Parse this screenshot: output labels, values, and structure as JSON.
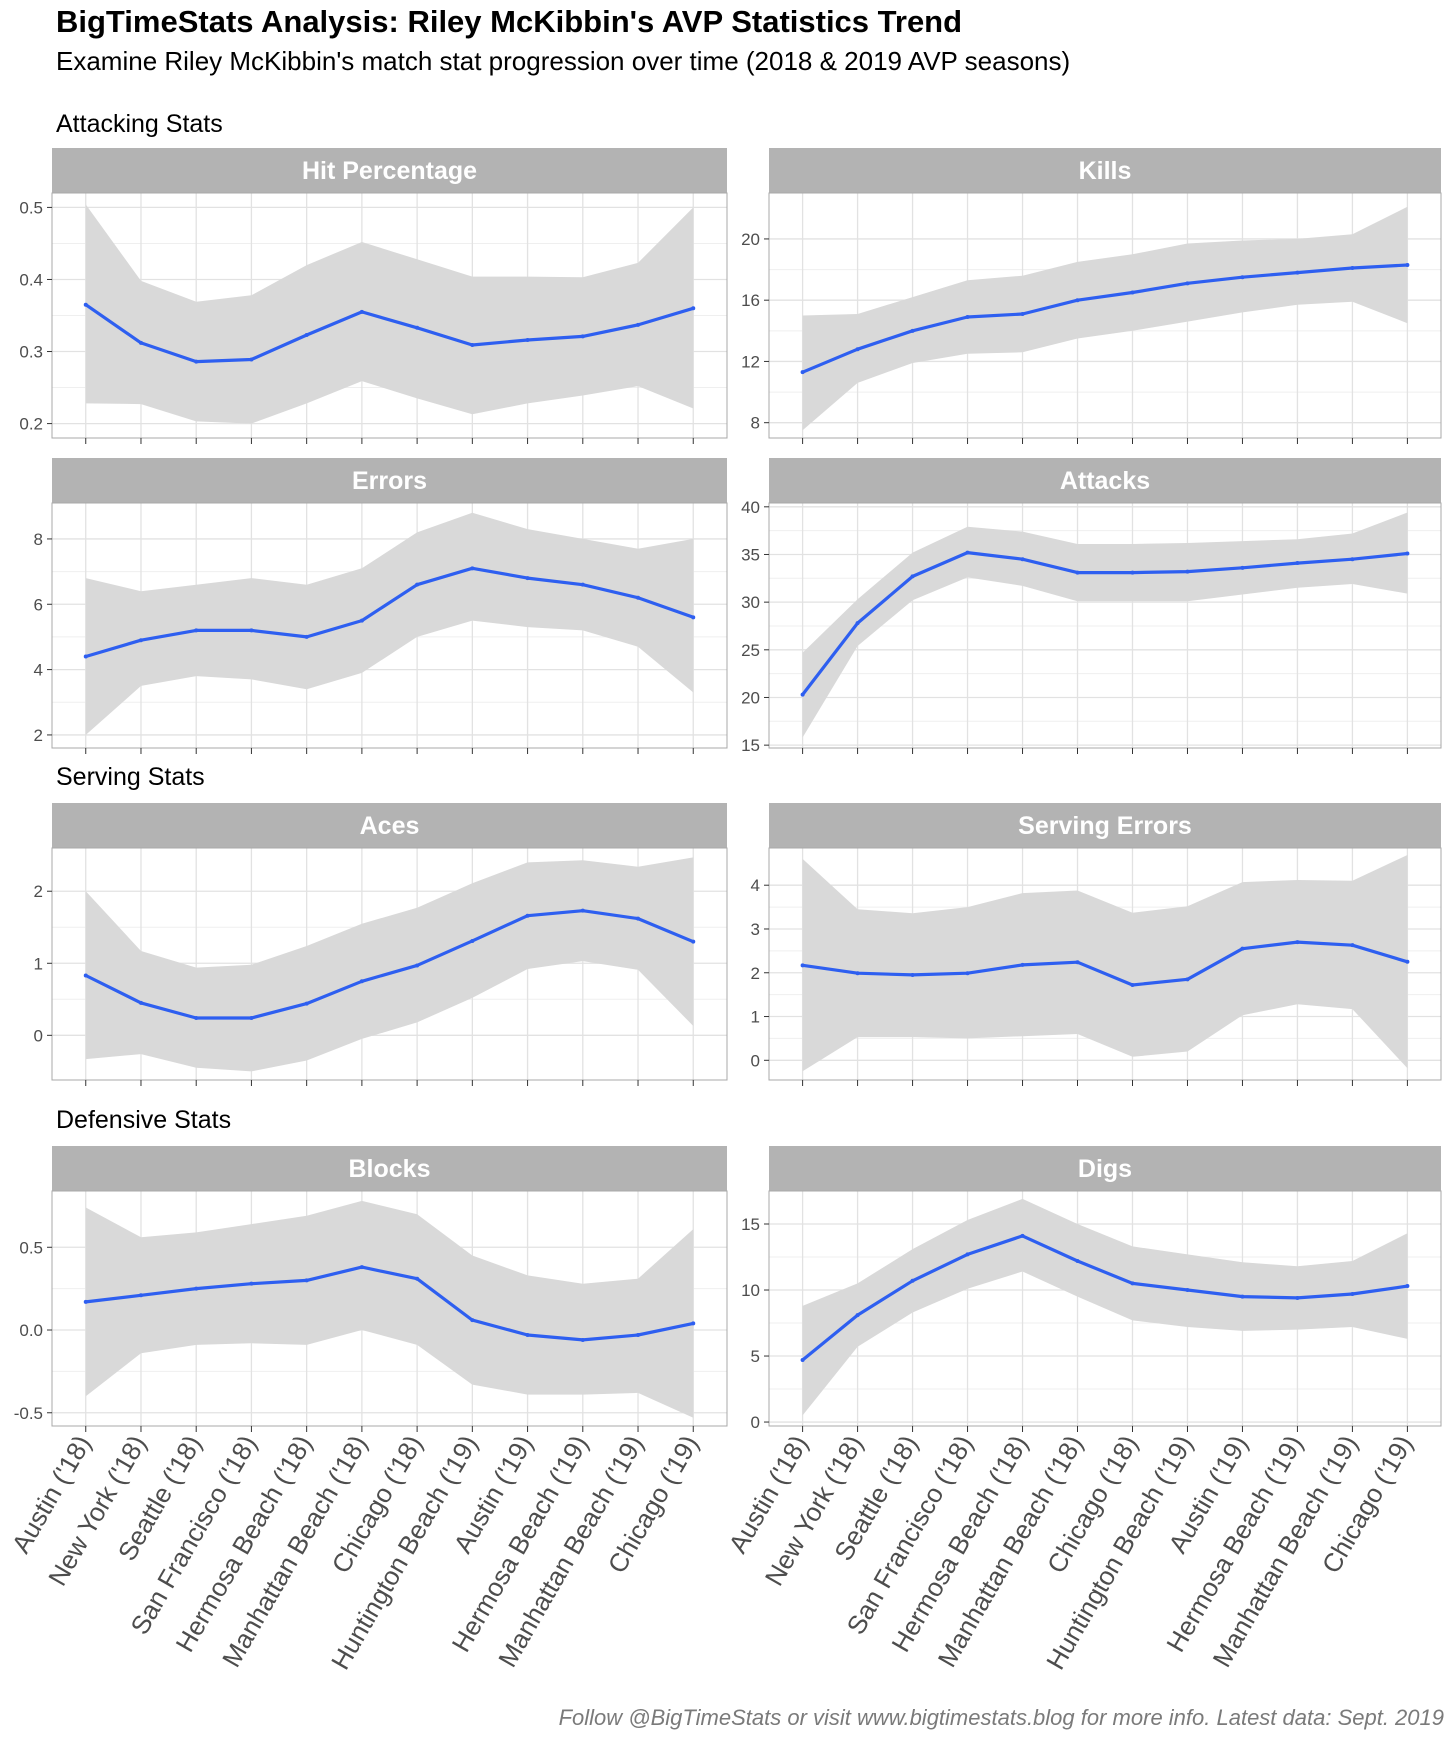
{
  "header": {
    "title": "BigTimeStats Analysis: Riley McKibbin's AVP Statistics Trend",
    "subtitle": "Examine Riley McKibbin's match stat progression over time (2018 & 2019 AVP seasons)"
  },
  "caption": "Follow @BigTimeStats or visit www.bigtimestats.blog for more info. Latest data: Sept. 2019",
  "sections": [
    "Attacking Stats",
    "Serving Stats",
    "Defensive Stats"
  ],
  "colors": {
    "line": "#2e5ff0",
    "ribbon": "#d9d9d9",
    "strip": "#b3b3b3",
    "strip_text": "#ffffff",
    "grid": "#e2e2e2"
  },
  "chart_data": [
    {
      "type": "line",
      "title": "Hit Percentage",
      "section": "Attacking Stats",
      "categories": [
        "Austin ('18)",
        "New York ('18)",
        "Seattle ('18)",
        "San Francisco ('18)",
        "Hermosa Beach ('18)",
        "Manhattan Beach ('18)",
        "Chicago ('18)",
        "Huntington Beach ('19)",
        "Austin ('19)",
        "Hermosa Beach ('19)",
        "Manhattan Beach ('19)",
        "Chicago ('19)"
      ],
      "ylim": [
        0.18,
        0.52
      ],
      "yticks": [
        0.2,
        0.3,
        0.4,
        0.5
      ],
      "tick_labels": [
        "0.2",
        "0.3",
        "0.4",
        "0.5"
      ],
      "values": [
        0.365,
        0.312,
        0.286,
        0.289,
        0.323,
        0.355,
        0.333,
        0.309,
        0.316,
        0.321,
        0.337,
        0.36
      ],
      "lower": [
        0.228,
        0.227,
        0.203,
        0.2,
        0.228,
        0.259,
        0.235,
        0.213,
        0.228,
        0.239,
        0.252,
        0.221
      ],
      "upper": [
        0.504,
        0.398,
        0.369,
        0.378,
        0.42,
        0.452,
        0.428,
        0.404,
        0.404,
        0.403,
        0.423,
        0.5
      ]
    },
    {
      "type": "line",
      "title": "Kills",
      "section": "Attacking Stats",
      "categories": [
        "Austin ('18)",
        "New York ('18)",
        "Seattle ('18)",
        "San Francisco ('18)",
        "Hermosa Beach ('18)",
        "Manhattan Beach ('18)",
        "Chicago ('18)",
        "Huntington Beach ('19)",
        "Austin ('19)",
        "Hermosa Beach ('19)",
        "Manhattan Beach ('19)",
        "Chicago ('19)"
      ],
      "ylim": [
        7,
        23
      ],
      "yticks": [
        8,
        12,
        16,
        20
      ],
      "tick_labels": [
        "8",
        "12",
        "16",
        "20"
      ],
      "values": [
        11.3,
        12.8,
        14.0,
        14.9,
        15.1,
        16.0,
        16.5,
        17.1,
        17.5,
        17.8,
        18.1,
        18.3
      ],
      "lower": [
        7.5,
        10.6,
        11.9,
        12.5,
        12.6,
        13.5,
        14.0,
        14.6,
        15.2,
        15.7,
        15.9,
        14.5
      ],
      "upper": [
        15.0,
        15.1,
        16.2,
        17.3,
        17.6,
        18.5,
        19.0,
        19.7,
        19.9,
        20.0,
        20.3,
        22.1
      ]
    },
    {
      "type": "line",
      "title": "Errors",
      "section": "Attacking Stats",
      "categories": [
        "Austin ('18)",
        "New York ('18)",
        "Seattle ('18)",
        "San Francisco ('18)",
        "Hermosa Beach ('18)",
        "Manhattan Beach ('18)",
        "Chicago ('18)",
        "Huntington Beach ('19)",
        "Austin ('19)",
        "Hermosa Beach ('19)",
        "Manhattan Beach ('19)",
        "Chicago ('19)"
      ],
      "ylim": [
        1.6,
        9.1
      ],
      "yticks": [
        2,
        4,
        6,
        8
      ],
      "tick_labels": [
        "2",
        "4",
        "6",
        "8"
      ],
      "values": [
        4.4,
        4.9,
        5.2,
        5.2,
        5.0,
        5.5,
        6.6,
        7.1,
        6.8,
        6.6,
        6.2,
        5.6
      ],
      "lower": [
        2.0,
        3.5,
        3.8,
        3.7,
        3.4,
        3.9,
        5.0,
        5.5,
        5.3,
        5.2,
        4.7,
        3.3
      ],
      "upper": [
        6.8,
        6.4,
        6.6,
        6.8,
        6.6,
        7.1,
        8.2,
        8.8,
        8.3,
        8.0,
        7.7,
        8.0
      ]
    },
    {
      "type": "line",
      "title": "Attacks",
      "section": "Attacking Stats",
      "categories": [
        "Austin ('18)",
        "New York ('18)",
        "Seattle ('18)",
        "San Francisco ('18)",
        "Hermosa Beach ('18)",
        "Manhattan Beach ('18)",
        "Chicago ('18)",
        "Huntington Beach ('19)",
        "Austin ('19)",
        "Hermosa Beach ('19)",
        "Manhattan Beach ('19)",
        "Chicago ('19)"
      ],
      "ylim": [
        14.7,
        40.4
      ],
      "yticks": [
        15,
        20,
        25,
        30,
        35,
        40
      ],
      "tick_labels": [
        "15",
        "20",
        "25",
        "30",
        "35",
        "40"
      ],
      "values": [
        20.3,
        27.8,
        32.7,
        35.2,
        34.5,
        33.1,
        33.1,
        33.2,
        33.6,
        34.1,
        34.5,
        35.1
      ],
      "lower": [
        15.8,
        25.4,
        30.2,
        32.6,
        31.7,
        30.1,
        30.1,
        30.1,
        30.8,
        31.5,
        31.9,
        30.9
      ],
      "upper": [
        24.7,
        30.3,
        35.2,
        37.9,
        37.4,
        36.1,
        36.1,
        36.2,
        36.4,
        36.6,
        37.2,
        39.4
      ]
    },
    {
      "type": "line",
      "title": "Aces",
      "section": "Serving Stats",
      "categories": [
        "Austin ('18)",
        "New York ('18)",
        "Seattle ('18)",
        "San Francisco ('18)",
        "Hermosa Beach ('18)",
        "Manhattan Beach ('18)",
        "Chicago ('18)",
        "Huntington Beach ('19)",
        "Austin ('19)",
        "Hermosa Beach ('19)",
        "Manhattan Beach ('19)",
        "Chicago ('19)"
      ],
      "ylim": [
        -0.62,
        2.6
      ],
      "yticks": [
        0,
        1,
        2
      ],
      "tick_labels": [
        "0",
        "1",
        "2"
      ],
      "values": [
        0.83,
        0.45,
        0.24,
        0.24,
        0.44,
        0.75,
        0.97,
        1.31,
        1.66,
        1.73,
        1.62,
        1.3
      ],
      "lower": [
        -0.33,
        -0.26,
        -0.45,
        -0.5,
        -0.35,
        -0.05,
        0.18,
        0.52,
        0.92,
        1.03,
        0.91,
        0.13
      ],
      "upper": [
        2.0,
        1.17,
        0.94,
        0.98,
        1.24,
        1.55,
        1.77,
        2.11,
        2.4,
        2.43,
        2.34,
        2.47
      ]
    },
    {
      "type": "line",
      "title": "Serving Errors",
      "section": "Serving Stats",
      "categories": [
        "Austin ('18)",
        "New York ('18)",
        "Seattle ('18)",
        "San Francisco ('18)",
        "Hermosa Beach ('18)",
        "Manhattan Beach ('18)",
        "Chicago ('18)",
        "Huntington Beach ('19)",
        "Austin ('19)",
        "Hermosa Beach ('19)",
        "Manhattan Beach ('19)",
        "Chicago ('19)"
      ],
      "ylim": [
        -0.45,
        4.85
      ],
      "yticks": [
        0,
        1,
        2,
        3,
        4
      ],
      "tick_labels": [
        "0",
        "1",
        "2",
        "3",
        "4"
      ],
      "values": [
        2.17,
        1.99,
        1.95,
        1.99,
        2.18,
        2.24,
        1.72,
        1.85,
        2.55,
        2.7,
        2.63,
        2.25
      ],
      "lower": [
        -0.25,
        0.53,
        0.53,
        0.5,
        0.55,
        0.6,
        0.08,
        0.2,
        1.03,
        1.28,
        1.17,
        -0.18
      ],
      "upper": [
        4.6,
        3.45,
        3.36,
        3.5,
        3.82,
        3.88,
        3.37,
        3.52,
        4.07,
        4.12,
        4.1,
        4.69
      ]
    },
    {
      "type": "line",
      "title": "Blocks",
      "section": "Defensive Stats",
      "categories": [
        "Austin ('18)",
        "New York ('18)",
        "Seattle ('18)",
        "San Francisco ('18)",
        "Hermosa Beach ('18)",
        "Manhattan Beach ('18)",
        "Chicago ('18)",
        "Huntington Beach ('19)",
        "Austin ('19)",
        "Hermosa Beach ('19)",
        "Manhattan Beach ('19)",
        "Chicago ('19)"
      ],
      "ylim": [
        -0.58,
        0.84
      ],
      "yticks": [
        -0.5,
        0.0,
        0.5
      ],
      "tick_labels": [
        "-0.5",
        "0.0",
        "0.5"
      ],
      "values": [
        0.17,
        0.21,
        0.25,
        0.28,
        0.3,
        0.38,
        0.31,
        0.06,
        -0.03,
        -0.06,
        -0.03,
        0.04
      ],
      "lower": [
        -0.4,
        -0.14,
        -0.09,
        -0.08,
        -0.09,
        0.0,
        -0.09,
        -0.33,
        -0.39,
        -0.39,
        -0.38,
        -0.53
      ],
      "upper": [
        0.74,
        0.56,
        0.59,
        0.64,
        0.69,
        0.78,
        0.7,
        0.45,
        0.33,
        0.28,
        0.31,
        0.61
      ]
    },
    {
      "type": "line",
      "title": "Digs",
      "section": "Defensive Stats",
      "categories": [
        "Austin ('18)",
        "New York ('18)",
        "Seattle ('18)",
        "San Francisco ('18)",
        "Hermosa Beach ('18)",
        "Manhattan Beach ('18)",
        "Chicago ('18)",
        "Huntington Beach ('19)",
        "Austin ('19)",
        "Hermosa Beach ('19)",
        "Manhattan Beach ('19)",
        "Chicago ('19)"
      ],
      "ylim": [
        -0.3,
        17.5
      ],
      "yticks": [
        0,
        5,
        10,
        15
      ],
      "tick_labels": [
        "0",
        "5",
        "10",
        "15"
      ],
      "values": [
        4.7,
        8.1,
        10.7,
        12.7,
        14.1,
        12.2,
        10.5,
        10.0,
        9.5,
        9.4,
        9.7,
        10.3
      ],
      "lower": [
        0.5,
        5.7,
        8.3,
        10.1,
        11.4,
        9.5,
        7.7,
        7.2,
        6.9,
        7.0,
        7.2,
        6.3
      ],
      "upper": [
        8.8,
        10.5,
        13.1,
        15.3,
        16.9,
        15.0,
        13.3,
        12.7,
        12.1,
        11.8,
        12.2,
        14.3
      ]
    }
  ]
}
